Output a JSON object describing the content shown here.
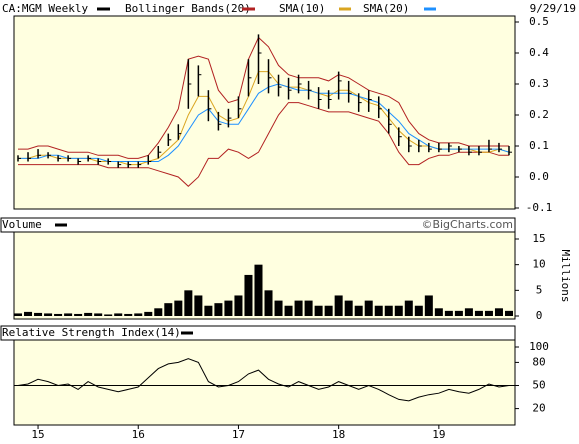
{
  "chart_data": [
    {
      "type": "ohlc",
      "date": "9/29/19",
      "x": [
        2014.8,
        2014.9,
        2015.0,
        2015.1,
        2015.2,
        2015.3,
        2015.4,
        2015.5,
        2015.6,
        2015.7,
        2015.8,
        2015.9,
        2016.0,
        2016.1,
        2016.2,
        2016.3,
        2016.4,
        2016.5,
        2016.6,
        2016.7,
        2016.8,
        2016.9,
        2017.0,
        2017.1,
        2017.2,
        2017.3,
        2017.4,
        2017.5,
        2017.6,
        2017.7,
        2017.8,
        2017.9,
        2018.0,
        2018.1,
        2018.2,
        2018.3,
        2018.4,
        2018.5,
        2018.6,
        2018.7,
        2018.8,
        2018.9,
        2019.0,
        2019.1,
        2019.2,
        2019.3,
        2019.4,
        2019.5,
        2019.6,
        2019.7
      ],
      "xlim": [
        2014.76,
        2019.76
      ],
      "xticks": [
        {
          "value": 2015,
          "label": "15"
        },
        {
          "value": 2016,
          "label": "16"
        },
        {
          "value": 2017,
          "label": "17"
        },
        {
          "value": 2018,
          "label": "18"
        },
        {
          "value": 2019,
          "label": "19"
        }
      ],
      "ylim": [
        -0.1,
        0.5
      ],
      "yticks": [
        -0.1,
        {
          "value": 0,
          "label": "0.0"
        },
        0.1,
        0.2,
        0.3,
        0.4,
        0.5
      ],
      "series": [
        {
          "name": "CA:MGM Weekly",
          "color": "#000000",
          "high": [
            0.07,
            0.08,
            0.09,
            0.08,
            0.07,
            0.07,
            0.06,
            0.07,
            0.06,
            0.06,
            0.05,
            0.05,
            0.05,
            0.07,
            0.1,
            0.14,
            0.17,
            0.38,
            0.36,
            0.28,
            0.21,
            0.22,
            0.26,
            0.38,
            0.46,
            0.38,
            0.33,
            0.32,
            0.33,
            0.31,
            0.29,
            0.28,
            0.34,
            0.31,
            0.27,
            0.28,
            0.26,
            0.22,
            0.16,
            0.13,
            0.12,
            0.11,
            0.11,
            0.11,
            0.1,
            0.1,
            0.1,
            0.12,
            0.11,
            0.1
          ],
          "low": [
            0.05,
            0.05,
            0.06,
            0.06,
            0.05,
            0.05,
            0.04,
            0.05,
            0.04,
            0.04,
            0.03,
            0.03,
            0.03,
            0.04,
            0.06,
            0.1,
            0.12,
            0.22,
            0.26,
            0.18,
            0.15,
            0.16,
            0.19,
            0.26,
            0.3,
            0.27,
            0.26,
            0.25,
            0.27,
            0.25,
            0.22,
            0.22,
            0.25,
            0.24,
            0.21,
            0.21,
            0.19,
            0.14,
            0.1,
            0.08,
            0.08,
            0.08,
            0.08,
            0.08,
            0.08,
            0.07,
            0.07,
            0.08,
            0.08,
            0.07
          ],
          "values": [
            0.06,
            0.06,
            0.07,
            0.07,
            0.06,
            0.06,
            0.05,
            0.06,
            0.05,
            0.05,
            0.04,
            0.04,
            0.04,
            0.05,
            0.08,
            0.12,
            0.14,
            0.3,
            0.33,
            0.22,
            0.17,
            0.19,
            0.22,
            0.32,
            0.4,
            0.32,
            0.29,
            0.28,
            0.3,
            0.28,
            0.25,
            0.25,
            0.31,
            0.27,
            0.24,
            0.25,
            0.22,
            0.17,
            0.13,
            0.1,
            0.1,
            0.09,
            0.09,
            0.1,
            0.09,
            0.08,
            0.08,
            0.09,
            0.09,
            0.08
          ]
        },
        {
          "name": "Bollinger Bands(20)",
          "color": "#b22222",
          "upper": [
            0.09,
            0.09,
            0.1,
            0.1,
            0.09,
            0.08,
            0.08,
            0.08,
            0.07,
            0.07,
            0.07,
            0.06,
            0.06,
            0.07,
            0.11,
            0.16,
            0.22,
            0.38,
            0.39,
            0.38,
            0.28,
            0.24,
            0.25,
            0.38,
            0.45,
            0.42,
            0.36,
            0.33,
            0.32,
            0.32,
            0.32,
            0.31,
            0.33,
            0.32,
            0.3,
            0.28,
            0.27,
            0.26,
            0.24,
            0.18,
            0.14,
            0.12,
            0.11,
            0.11,
            0.11,
            0.1,
            0.1,
            0.1,
            0.1,
            0.1
          ],
          "lower": [
            0.04,
            0.04,
            0.04,
            0.04,
            0.04,
            0.04,
            0.04,
            0.04,
            0.04,
            0.03,
            0.03,
            0.03,
            0.03,
            0.03,
            0.02,
            0.01,
            0.0,
            -0.03,
            0.0,
            0.06,
            0.06,
            0.09,
            0.08,
            0.06,
            0.08,
            0.14,
            0.2,
            0.24,
            0.24,
            0.23,
            0.22,
            0.21,
            0.21,
            0.21,
            0.2,
            0.19,
            0.18,
            0.14,
            0.08,
            0.04,
            0.04,
            0.06,
            0.07,
            0.07,
            0.08,
            0.08,
            0.08,
            0.08,
            0.07,
            0.07
          ]
        },
        {
          "name": "SMA(10)",
          "color": "#daa520",
          "values": [
            0.06,
            0.06,
            0.07,
            0.07,
            0.06,
            0.06,
            0.06,
            0.06,
            0.05,
            0.05,
            0.05,
            0.04,
            0.04,
            0.05,
            0.06,
            0.09,
            0.12,
            0.2,
            0.26,
            0.26,
            0.2,
            0.18,
            0.19,
            0.26,
            0.34,
            0.34,
            0.3,
            0.29,
            0.29,
            0.28,
            0.27,
            0.26,
            0.28,
            0.28,
            0.26,
            0.24,
            0.23,
            0.19,
            0.15,
            0.12,
            0.1,
            0.1,
            0.09,
            0.09,
            0.09,
            0.09,
            0.08,
            0.08,
            0.09,
            0.08
          ]
        },
        {
          "name": "SMA(20)",
          "color": "#1e90ff",
          "values": [
            0.06,
            0.06,
            0.06,
            0.07,
            0.07,
            0.06,
            0.06,
            0.06,
            0.06,
            0.05,
            0.05,
            0.05,
            0.05,
            0.05,
            0.05,
            0.07,
            0.1,
            0.15,
            0.2,
            0.22,
            0.18,
            0.17,
            0.17,
            0.22,
            0.27,
            0.29,
            0.3,
            0.29,
            0.28,
            0.28,
            0.27,
            0.27,
            0.27,
            0.27,
            0.26,
            0.25,
            0.24,
            0.21,
            0.18,
            0.14,
            0.12,
            0.1,
            0.09,
            0.09,
            0.09,
            0.09,
            0.09,
            0.09,
            0.09,
            0.08
          ]
        }
      ]
    },
    {
      "type": "bar",
      "title": "Volume",
      "credit": "©BigCharts.com",
      "y_label": "Millions",
      "color": "#000000",
      "x": [
        2014.8,
        2014.9,
        2015.0,
        2015.1,
        2015.2,
        2015.3,
        2015.4,
        2015.5,
        2015.6,
        2015.7,
        2015.8,
        2015.9,
        2016.0,
        2016.1,
        2016.2,
        2016.3,
        2016.4,
        2016.5,
        2016.6,
        2016.7,
        2016.8,
        2016.9,
        2017.0,
        2017.1,
        2017.2,
        2017.3,
        2017.4,
        2017.5,
        2017.6,
        2017.7,
        2017.8,
        2017.9,
        2018.0,
        2018.1,
        2018.2,
        2018.3,
        2018.4,
        2018.5,
        2018.6,
        2018.7,
        2018.8,
        2018.9,
        2019.0,
        2019.1,
        2019.2,
        2019.3,
        2019.4,
        2019.5,
        2019.6,
        2019.7
      ],
      "xlim": [
        2014.76,
        2019.76
      ],
      "values": [
        0.5,
        0.8,
        0.6,
        0.5,
        0.4,
        0.5,
        0.4,
        0.6,
        0.5,
        0.3,
        0.5,
        0.4,
        0.5,
        0.8,
        1.5,
        2.5,
        3,
        5,
        4,
        2,
        2.5,
        3,
        4,
        8,
        10,
        5,
        3,
        2,
        3,
        3,
        2,
        2,
        4,
        3,
        2,
        3,
        2,
        2,
        2,
        3,
        2,
        4,
        1.5,
        1,
        1,
        1.5,
        1,
        1,
        1.5,
        1
      ],
      "ylim": [
        0,
        15
      ],
      "yticks": [
        0,
        5,
        10,
        15
      ]
    },
    {
      "type": "line",
      "title": "Relative Strength Index(14)",
      "color": "#000000",
      "x": [
        2014.8,
        2014.9,
        2015.0,
        2015.1,
        2015.2,
        2015.3,
        2015.4,
        2015.5,
        2015.6,
        2015.7,
        2015.8,
        2015.9,
        2016.0,
        2016.1,
        2016.2,
        2016.3,
        2016.4,
        2016.5,
        2016.6,
        2016.7,
        2016.8,
        2016.9,
        2017.0,
        2017.1,
        2017.2,
        2017.3,
        2017.4,
        2017.5,
        2017.6,
        2017.7,
        2017.8,
        2017.9,
        2018.0,
        2018.1,
        2018.2,
        2018.3,
        2018.4,
        2018.5,
        2018.6,
        2018.7,
        2018.8,
        2018.9,
        2019.0,
        2019.1,
        2019.2,
        2019.3,
        2019.4,
        2019.5,
        2019.6,
        2019.7
      ],
      "xlim": [
        2014.76,
        2019.76
      ],
      "values": [
        50,
        52,
        58,
        55,
        50,
        52,
        45,
        55,
        48,
        45,
        42,
        45,
        48,
        60,
        72,
        78,
        80,
        85,
        80,
        55,
        48,
        50,
        55,
        65,
        70,
        58,
        52,
        48,
        55,
        50,
        45,
        48,
        55,
        50,
        45,
        50,
        45,
        38,
        32,
        30,
        35,
        38,
        40,
        45,
        42,
        40,
        45,
        52,
        48,
        50
      ],
      "reference": 50,
      "ylim": [
        0,
        100
      ],
      "yticks": [
        20,
        50,
        80,
        100
      ]
    }
  ]
}
